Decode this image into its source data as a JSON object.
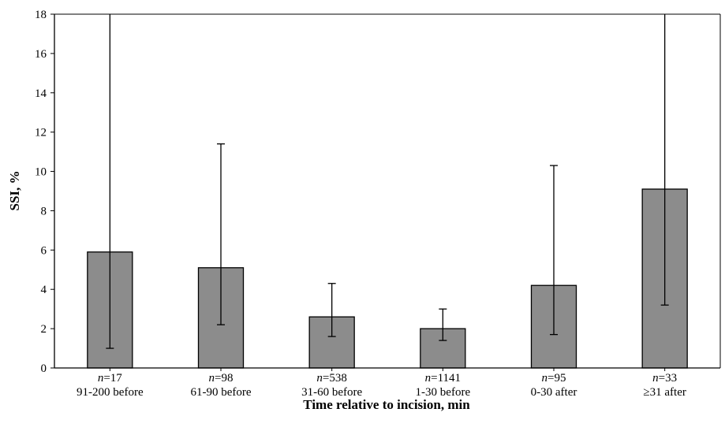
{
  "chart_data": {
    "type": "bar",
    "title": "",
    "xlabel": "Time relative to incision, min",
    "ylabel": "SSI, %",
    "ylim": [
      0,
      18
    ],
    "yticks": [
      "0",
      "2",
      "4",
      "6",
      "8",
      "10",
      "12",
      "14",
      "16",
      "18"
    ],
    "grid": false,
    "legend": "none",
    "n_prefix": "n",
    "categories": [
      "91-200 before",
      "61-90 before",
      "31-60 before",
      "1-30 before",
      "0-30 after",
      "≥31 after"
    ],
    "n_values": [
      "=17",
      "=98",
      "=538",
      "=1141",
      "=95",
      "=33"
    ],
    "values": [
      5.9,
      5.1,
      2.6,
      2.0,
      4.2,
      9.1
    ],
    "error_lower": [
      1.0,
      2.2,
      1.6,
      1.4,
      1.7,
      3.2
    ],
    "error_upper": [
      18.0,
      11.4,
      4.3,
      3.0,
      10.3,
      18.0
    ],
    "bar_color": "#8c8c8c",
    "edge_color": "#000000"
  }
}
